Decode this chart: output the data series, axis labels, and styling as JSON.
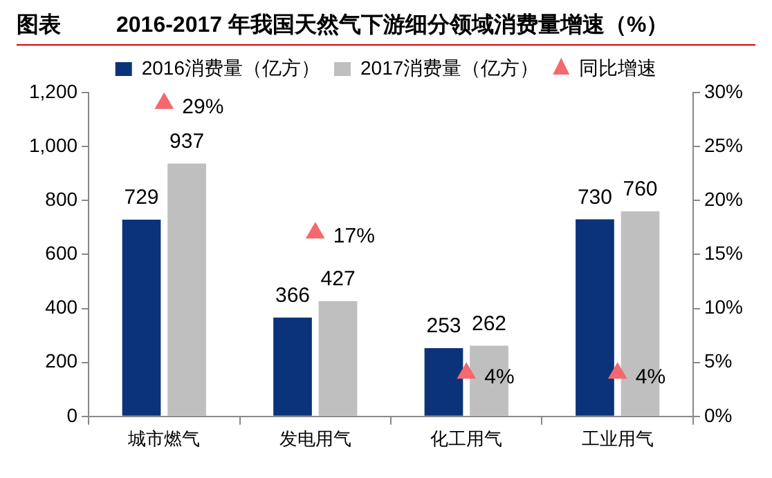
{
  "chart_data": {
    "type": "bar",
    "title": "2016-2017 年我国天然气下游细分领域消费量增速（%）",
    "annotations": [
      "图表"
    ],
    "categories": [
      "城市燃气",
      "发电用气",
      "化工用气",
      "工业用气"
    ],
    "series": [
      {
        "name": "2016消费量（亿方）",
        "color": "#0b3379",
        "values": [
          729,
          366,
          253,
          730
        ]
      },
      {
        "name": "2017消费量（亿方）",
        "color": "#bfbfbf",
        "values": [
          937,
          427,
          262,
          760
        ]
      },
      {
        "name": "同比增速",
        "type": "scatter",
        "axis": "y2",
        "marker": "triangle",
        "color": "#f5686e",
        "x": [
          "城市燃气",
          "发电用气",
          "化工用气",
          "工业用气"
        ],
        "values": [
          29,
          17,
          4,
          4
        ],
        "value_labels": [
          "29%",
          "17%",
          "4%",
          "4%"
        ]
      }
    ],
    "ylim": [
      0,
      1200
    ],
    "yticks": [
      0,
      200,
      400,
      600,
      800,
      {
        "value": 1000,
        "label": "1,000"
      },
      {
        "value": 1200,
        "label": "1,200"
      }
    ],
    "y2lim": [
      0,
      30
    ],
    "y2ticks": [
      {
        "value": 0,
        "label": "0%"
      },
      {
        "value": 5,
        "label": "5%"
      },
      {
        "value": 10,
        "label": "10%"
      },
      {
        "value": 15,
        "label": "15%"
      },
      {
        "value": 20,
        "label": "20%"
      },
      {
        "value": 25,
        "label": "25%"
      },
      {
        "value": 30,
        "label": "30%"
      }
    ],
    "data_labels": true,
    "grid": false,
    "legend": "top"
  }
}
